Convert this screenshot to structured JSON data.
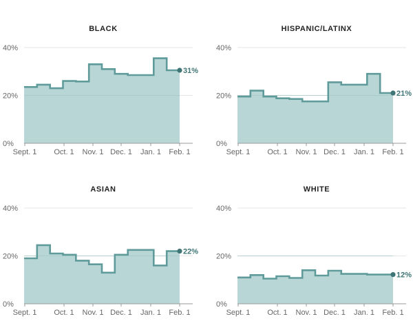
{
  "chart_data": [
    {
      "type": "area",
      "title": "BLACK",
      "step": true,
      "x": [
        "Aug. 25",
        "Sept. 8",
        "Sept. 22",
        "Oct. 6",
        "Oct. 20",
        "Nov. 3",
        "Nov. 17",
        "Dec. 1",
        "Dec. 15",
        "Dec. 29",
        "Jan. 12",
        "Jan. 26"
      ],
      "values": [
        23.5,
        24.5,
        23,
        26,
        25.8,
        33,
        31,
        29,
        28.5,
        28.5,
        35.5,
        30.5
      ],
      "x_ticks": [
        "Sept. 1",
        "Oct. 1",
        "Nov. 1",
        "Dec. 1",
        "Jan. 1",
        "Feb. 1"
      ],
      "y_ticks": [
        "0%",
        "20%",
        "40%"
      ],
      "ylim": [
        0,
        40
      ],
      "end_label": "31%"
    },
    {
      "type": "area",
      "title": "HISPANIC/LATINX",
      "step": true,
      "x": [
        "Aug. 25",
        "Sept. 8",
        "Sept. 22",
        "Oct. 6",
        "Oct. 20",
        "Nov. 3",
        "Nov. 17",
        "Dec. 1",
        "Dec. 15",
        "Dec. 29",
        "Jan. 12",
        "Jan. 26"
      ],
      "values": [
        19.5,
        22,
        19.5,
        18.8,
        18.5,
        17.5,
        17.5,
        25.5,
        24.5,
        24.5,
        29,
        21
      ],
      "x_ticks": [
        "Sept. 1",
        "Oct. 1",
        "Nov. 1",
        "Dec. 1",
        "Jan. 1",
        "Feb. 1"
      ],
      "y_ticks": [
        "0%",
        "20%",
        "40%"
      ],
      "ylim": [
        0,
        40
      ],
      "end_label": "21%"
    },
    {
      "type": "area",
      "title": "ASIAN",
      "step": true,
      "x": [
        "Aug. 25",
        "Sept. 8",
        "Sept. 22",
        "Oct. 6",
        "Oct. 20",
        "Nov. 3",
        "Nov. 17",
        "Dec. 1",
        "Dec. 15",
        "Dec. 29",
        "Jan. 12",
        "Jan. 26"
      ],
      "values": [
        19,
        24.5,
        21,
        20.5,
        18,
        16.5,
        13,
        20.5,
        22.5,
        22.5,
        16,
        22
      ],
      "x_ticks": [
        "Sept. 1",
        "Oct. 1",
        "Nov. 1",
        "Dec. 1",
        "Jan. 1",
        "Feb. 1"
      ],
      "y_ticks": [
        "0%",
        "20%",
        "40%"
      ],
      "ylim": [
        0,
        40
      ],
      "end_label": "22%"
    },
    {
      "type": "area",
      "title": "WHITE",
      "step": true,
      "x": [
        "Aug. 25",
        "Sept. 8",
        "Sept. 22",
        "Oct. 6",
        "Oct. 20",
        "Nov. 3",
        "Nov. 17",
        "Dec. 1",
        "Dec. 15",
        "Dec. 29",
        "Jan. 12",
        "Jan. 26"
      ],
      "values": [
        11,
        12,
        10.5,
        11.5,
        10.8,
        14,
        11.8,
        13.8,
        12.5,
        12.5,
        12.2,
        12.2
      ],
      "x_ticks": [
        "Sept. 1",
        "Oct. 1",
        "Nov. 1",
        "Dec. 1",
        "Jan. 1",
        "Feb. 1"
      ],
      "y_ticks": [
        "0%",
        "20%",
        "40%"
      ],
      "ylim": [
        0,
        40
      ],
      "end_label": "12%"
    }
  ],
  "colors": {
    "line": "#5f9b9a",
    "fill": "#b9d6d6",
    "dot": "#3f7574",
    "grid": "#e6e6e6",
    "axis": "#999999"
  }
}
